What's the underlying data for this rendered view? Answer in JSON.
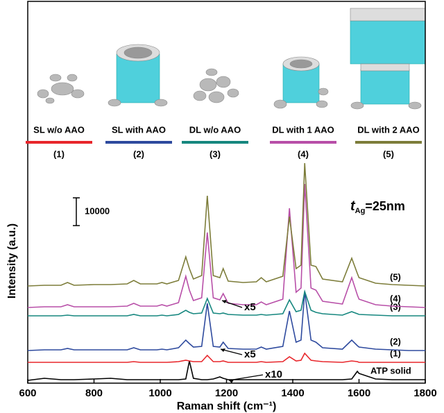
{
  "chart_data": {
    "type": "line",
    "x_label": "Raman shift (cm⁻¹)",
    "y_label": "Intensity (a.u.)",
    "xlim": [
      600,
      1800
    ],
    "xticks": [
      600,
      800,
      1000,
      1200,
      1400,
      1600,
      1800
    ],
    "ylim": [
      0,
      135500
    ],
    "scale_bar": 10000,
    "thickness_label": {
      "symbol": "t",
      "subscript": "Ag",
      "text": "=25nm"
    },
    "annotations": [
      "x5",
      "x5",
      "x10"
    ],
    "x": [
      600,
      650,
      700,
      720,
      740,
      800,
      850,
      900,
      920,
      940,
      990,
      1005,
      1020,
      1055,
      1077,
      1088,
      1100,
      1125,
      1142,
      1160,
      1180,
      1190,
      1205,
      1250,
      1290,
      1305,
      1320,
      1370,
      1390,
      1410,
      1425,
      1436,
      1455,
      1470,
      1490,
      1550,
      1578,
      1595,
      1600,
      1650,
      1700,
      1750,
      1800
    ],
    "series": [
      {
        "name": "ATP solid",
        "color": "#000000",
        "values": [
          1000,
          1750,
          1250,
          1250,
          1250,
          1500,
          1750,
          1250,
          1250,
          1250,
          1250,
          1250,
          1250,
          1250,
          1500,
          8000,
          1750,
          1250,
          1250,
          1500,
          2250,
          1750,
          1250,
          1250,
          1250,
          1250,
          1250,
          1250,
          1250,
          1250,
          1250,
          1250,
          1250,
          1250,
          1250,
          1250,
          1500,
          4250,
          3500,
          1500,
          1250,
          1250,
          1250
        ]
      },
      {
        "name": "(1)",
        "description": "SL w/o AAO",
        "color": "#e8262b",
        "values": [
          7500,
          7500,
          7500,
          7500,
          7500,
          7500,
          7500,
          7500,
          7750,
          7500,
          7500,
          7500,
          7500,
          7750,
          8250,
          8000,
          7750,
          7750,
          10000,
          7750,
          7750,
          8000,
          7500,
          7500,
          7500,
          7750,
          7500,
          7750,
          9500,
          8000,
          8250,
          10750,
          8250,
          8000,
          7750,
          7500,
          8000,
          7750,
          7500,
          7500,
          7500,
          7500,
          7500
        ]
      },
      {
        "name": "(2)",
        "description": "SL with AAO",
        "color": "#2e4a9e",
        "values": [
          11750,
          12000,
          12000,
          12500,
          12000,
          12000,
          12000,
          12000,
          12750,
          12000,
          12000,
          12250,
          12000,
          12750,
          15500,
          14250,
          13000,
          13250,
          28750,
          13250,
          13000,
          14750,
          12500,
          12250,
          12250,
          13000,
          12250,
          13250,
          26000,
          14750,
          15500,
          33000,
          15500,
          14750,
          12750,
          12250,
          15500,
          13500,
          13000,
          12250,
          12000,
          11750,
          11750
        ]
      },
      {
        "name": "(3)",
        "description": "DL w/o AAO",
        "color": "#16877f",
        "values": [
          24250,
          24250,
          24250,
          24500,
          24250,
          24250,
          24250,
          24250,
          24750,
          24250,
          24250,
          24500,
          24250,
          24750,
          26250,
          25500,
          25000,
          25250,
          30500,
          25250,
          25000,
          25250,
          24750,
          24500,
          24500,
          24750,
          24500,
          25000,
          30000,
          25750,
          26250,
          33000,
          26250,
          25500,
          25000,
          24500,
          25750,
          25000,
          24750,
          24500,
          24250,
          24250,
          24250
        ]
      },
      {
        "name": "(4)",
        "description": "DL with 1 AAO",
        "color": "#b84fa8",
        "values": [
          27250,
          27500,
          27500,
          28250,
          27500,
          27500,
          27500,
          27750,
          28750,
          27750,
          27750,
          28250,
          27750,
          29000,
          38500,
          33500,
          29750,
          30750,
          54250,
          30750,
          30000,
          32250,
          28750,
          28250,
          28250,
          29250,
          28250,
          30250,
          63000,
          32750,
          34250,
          71750,
          34250,
          33500,
          29500,
          28500,
          38000,
          31750,
          30250,
          28250,
          27750,
          27500,
          27250
        ]
      },
      {
        "name": "(5)",
        "description": "DL with 2 AAO",
        "color": "#7d7d3a",
        "values": [
          35000,
          35250,
          35250,
          36250,
          35250,
          35500,
          35500,
          35750,
          37000,
          35750,
          35750,
          36250,
          35750,
          37000,
          45500,
          41250,
          37500,
          38750,
          67500,
          38750,
          38000,
          41250,
          36750,
          36250,
          36500,
          38000,
          36500,
          38500,
          60000,
          41250,
          42500,
          79250,
          42500,
          42000,
          37500,
          36500,
          45000,
          39500,
          38000,
          36000,
          35500,
          35250,
          35000
        ]
      }
    ]
  }
}
